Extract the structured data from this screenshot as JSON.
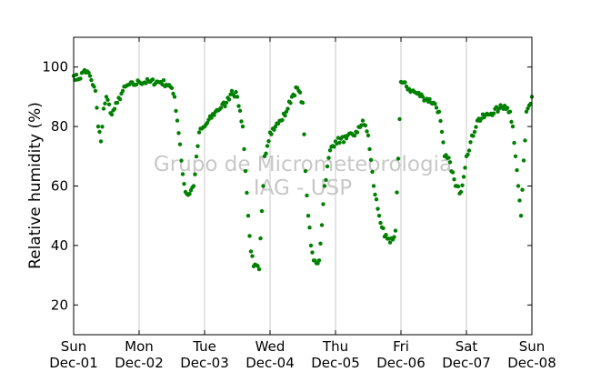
{
  "chart_data": {
    "type": "scatter",
    "title": "",
    "xlabel": "",
    "ylabel": "Relative humidity (%)",
    "xlim": [
      "Dec-01",
      "Dec-08"
    ],
    "ylim": [
      10,
      110
    ],
    "yticks": [
      20,
      40,
      60,
      80,
      100
    ],
    "grid": "vertical day lines",
    "color": "#008000",
    "xtick_labels": [
      {
        "day": "Sun",
        "date": "Dec-01"
      },
      {
        "day": "Mon",
        "date": "Dec-02"
      },
      {
        "day": "Tue",
        "date": "Dec-03"
      },
      {
        "day": "Wed",
        "date": "Dec-04"
      },
      {
        "day": "Thu",
        "date": "Dec-05"
      },
      {
        "day": "Fri",
        "date": "Dec-06"
      },
      {
        "day": "Sat",
        "date": "Dec-07"
      },
      {
        "day": "Sun",
        "date": "Dec-08"
      }
    ],
    "watermark": [
      "Grupo de Micrometeorologia",
      "IAG - USP"
    ],
    "series": [
      {
        "x": [
          "Dec-01 00:00",
          "Dec-01 02:00",
          "Dec-01 04:00",
          "Dec-01 06:00",
          "Dec-01 07:00",
          "Dec-01 08:00",
          "Dec-01 09:00",
          "Dec-01 10:00",
          "Dec-01 11:00",
          "Dec-01 12:00",
          "Dec-01 14:00",
          "Dec-01 16:00",
          "Dec-01 18:00",
          "Dec-01 20:00",
          "Dec-01 22:00",
          "Dec-02 00:00",
          "Dec-02 04:00",
          "Dec-02 08:00",
          "Dec-02 11:00",
          "Dec-02 13:00",
          "Dec-02 14:00",
          "Dec-02 15:00",
          "Dec-02 16:00",
          "Dec-02 17:00",
          "Dec-02 18:00",
          "Dec-02 20:00",
          "Dec-02 22:00",
          "Dec-03 00:00",
          "Dec-03 04:00",
          "Dec-03 08:00",
          "Dec-03 10:00",
          "Dec-03 12:00",
          "Dec-03 14:00",
          "Dec-03 15:00",
          "Dec-03 16:00",
          "Dec-03 17:00",
          "Dec-03 18:00",
          "Dec-03 20:00",
          "Dec-03 22:00",
          "Dec-04 00:00",
          "Dec-04 02:00",
          "Dec-04 04:00",
          "Dec-04 06:00",
          "Dec-04 08:00",
          "Dec-04 10:00",
          "Dec-04 12:00",
          "Dec-04 13:00",
          "Dec-04 14:00",
          "Dec-04 15:00",
          "Dec-04 16:00",
          "Dec-04 17:00",
          "Dec-04 18:00",
          "Dec-04 20:00",
          "Dec-04 22:00",
          "Dec-05 00:00",
          "Dec-05 04:00",
          "Dec-05 08:00",
          "Dec-05 10:00",
          "Dec-05 12:00",
          "Dec-05 14:00",
          "Dec-05 16:00",
          "Dec-05 18:00",
          "Dec-05 20:00",
          "Dec-05 21:00",
          "Dec-05 22:00",
          "Dec-06 00:00",
          "Dec-06 04:00",
          "Dec-06 08:00",
          "Dec-06 12:00",
          "Dec-06 14:00",
          "Dec-06 16:00",
          "Dec-06 18:00",
          "Dec-06 20:00",
          "Dec-06 22:00",
          "Dec-07 00:00",
          "Dec-07 04:00",
          "Dec-07 08:00",
          "Dec-07 12:00",
          "Dec-07 14:00",
          "Dec-07 16:00",
          "Dec-07 17:00",
          "Dec-07 18:00",
          "Dec-07 19:00",
          "Dec-07 20:00",
          "Dec-07 22:00",
          "Dec-08 00:00"
        ],
        "y": [
          97,
          96,
          99,
          97,
          94,
          92,
          80,
          75,
          86,
          90,
          84,
          88,
          92,
          94,
          94,
          95,
          95,
          95,
          94,
          90,
          82,
          74,
          64,
          58,
          57,
          60,
          78,
          80,
          85,
          88,
          92,
          90,
          80,
          65,
          50,
          38,
          33,
          32,
          70,
          78,
          80,
          82,
          85,
          90,
          93,
          88,
          65,
          50,
          40,
          35,
          34,
          35,
          60,
          72,
          75,
          76,
          78,
          82,
          77,
          60,
          50,
          43,
          41,
          42,
          45,
          95,
          92,
          90,
          88,
          85,
          70,
          68,
          60,
          58,
          70,
          82,
          84,
          86,
          87,
          85,
          80,
          70,
          60,
          50,
          85,
          90
        ]
      }
    ]
  }
}
